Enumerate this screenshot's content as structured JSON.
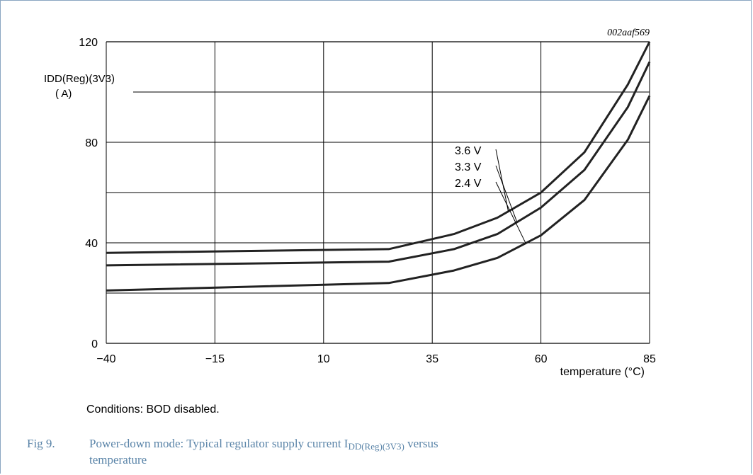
{
  "chart_data": {
    "type": "line",
    "figure_code": "002aaf569",
    "ylabel_main": "I",
    "ylabel_sub": "DD(Reg)(3V3)",
    "ylabel_unit": "( A)",
    "xlabel": "temperature (°C)",
    "xlim": [
      -40,
      85
    ],
    "ylim": [
      0,
      120
    ],
    "xticks": [
      -40,
      -15,
      10,
      35,
      60,
      85
    ],
    "xtick_labels": [
      "−40",
      "−15",
      "10",
      "35",
      "60",
      "85"
    ],
    "yticks": [
      0,
      40,
      80,
      120
    ],
    "ytick_labels": [
      "0",
      "40",
      "80",
      "120"
    ],
    "grid": true,
    "series": [
      {
        "name": "3.6 V",
        "x": [
          -40,
          25,
          40,
          50,
          60,
          70,
          80,
          85
        ],
        "y": [
          36,
          37.5,
          43.5,
          50,
          60,
          76,
          103,
          120
        ]
      },
      {
        "name": "3.3 V",
        "x": [
          -40,
          25,
          40,
          50,
          60,
          70,
          80,
          85
        ],
        "y": [
          31,
          32.5,
          37.5,
          43.5,
          54,
          69,
          94,
          112
        ]
      },
      {
        "name": "2.4 V",
        "x": [
          -40,
          25,
          40,
          50,
          60,
          70,
          80,
          85
        ],
        "y": [
          21,
          24,
          29,
          34,
          43,
          57,
          81,
          98.5
        ]
      }
    ]
  },
  "notes": {
    "conditions": "Conditions: BOD disabled."
  },
  "caption": {
    "number": "Fig 9.",
    "text_pre": "Power-down mode: Typical regulator supply current I",
    "text_sub": "DD(Reg)(3V3)",
    "text_post": " versus",
    "text_line2": "temperature"
  }
}
